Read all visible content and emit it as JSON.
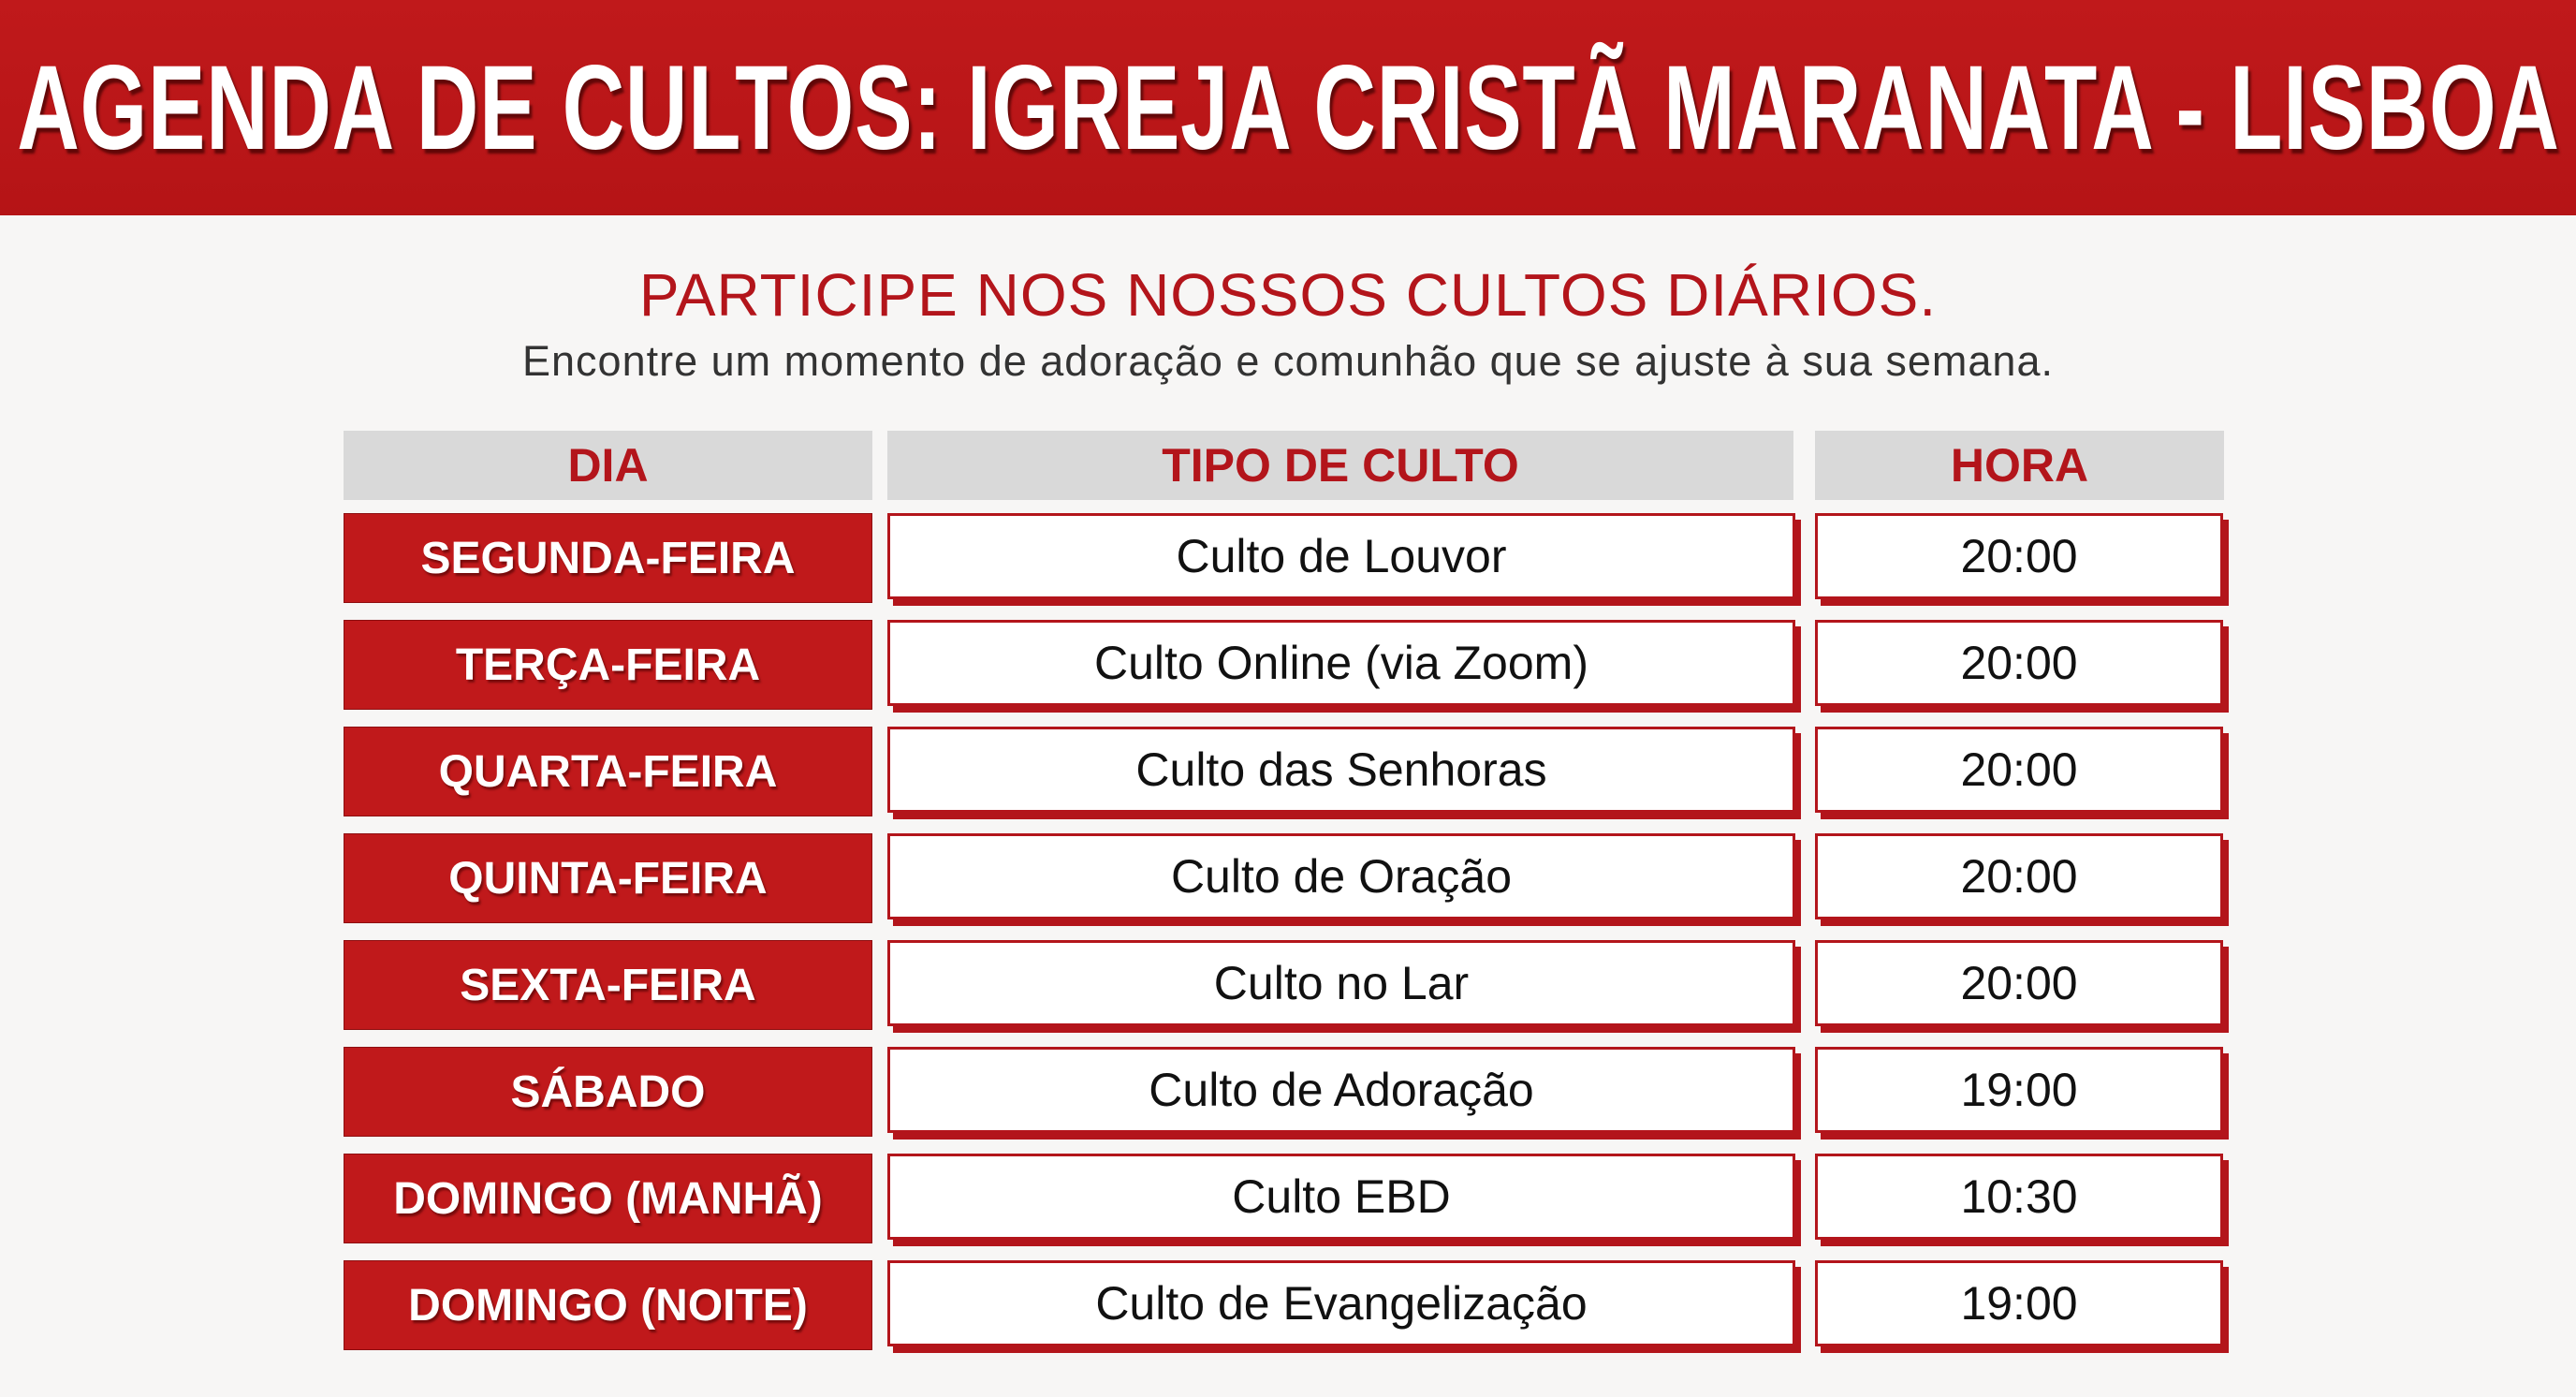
{
  "header": {
    "title": "AGENDA DE CULTOS: IGREJA CRISTÃ MARANATA - LISBOA"
  },
  "intro": {
    "heading": "PARTICIPE NOS NOSSOS CULTOS DIÁRIOS.",
    "text": "Encontre um momento de adoração e comunhão que se ajuste à sua semana."
  },
  "colors": {
    "brand_red": "#c0191b",
    "header_gray": "#d9d9d9"
  },
  "table": {
    "columns": [
      "DIA",
      "TIPO DE CULTO",
      "HORA"
    ],
    "rows": [
      {
        "day": "SEGUNDA-FEIRA",
        "type": "Culto de Louvor",
        "time": "20:00"
      },
      {
        "day": "TERÇA-FEIRA",
        "type": "Culto Online (via Zoom)",
        "time": "20:00"
      },
      {
        "day": "QUARTA-FEIRA",
        "type": "Culto das Senhoras",
        "time": "20:00"
      },
      {
        "day": "QUINTA-FEIRA",
        "type": "Culto de Oração",
        "time": "20:00"
      },
      {
        "day": "SEXTA-FEIRA",
        "type": "Culto no Lar",
        "time": "20:00"
      },
      {
        "day": "SÁBADO",
        "type": "Culto de Adoração",
        "time": "19:00"
      },
      {
        "day": "DOMINGO (MANHÃ)",
        "type": "Culto EBD",
        "time": "10:30"
      },
      {
        "day": "DOMINGO (NOITE)",
        "type": "Culto de Evangelização",
        "time": "19:00"
      }
    ]
  }
}
